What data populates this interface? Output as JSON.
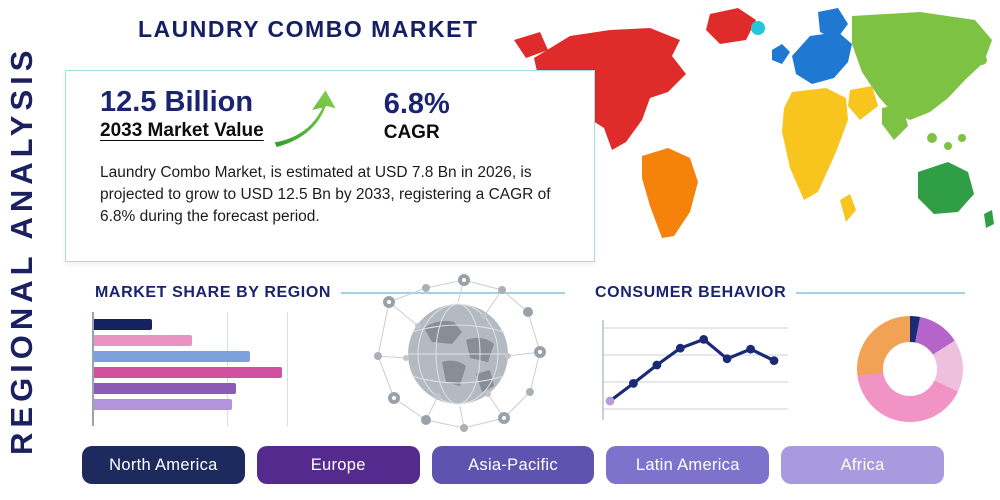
{
  "title": "LAUNDRY COMBO MARKET",
  "side_label": "REGIONAL ANALYSIS",
  "summary_card": {
    "stat1_value": "12.5 Billion",
    "stat1_label": "2033 Market Value",
    "stat2_value": "6.8%",
    "stat2_label": "CAGR",
    "description": "Laundry Combo Market, is estimated at USD 7.8 Bn in 2026, is projected to grow to USD 12.5 Bn by 2033, registering a CAGR of 6.8% during the forecast period."
  },
  "sections": {
    "market_share_heading": "MARKET SHARE BY REGION",
    "consumer_behavior_heading": "CONSUMER BEHAVIOR"
  },
  "region_buttons": [
    {
      "label": "North America",
      "color": "#1c2a5e"
    },
    {
      "label": "Europe",
      "color": "#552a8e"
    },
    {
      "label": "Asia-Pacific",
      "color": "#5e53ae"
    },
    {
      "label": "Latin America",
      "color": "#7f72cd"
    },
    {
      "label": "Africa",
      "color": "#a79ade"
    }
  ],
  "map": {
    "regions": {
      "north_america": "#e02b2b",
      "greenland": "#e02b2b",
      "south_america": "#f5820b",
      "europe": "#1f78d1",
      "africa": "#f7c51e",
      "asia": "#7dc242",
      "australia": "#2f9e44",
      "islands": "#26c6da"
    }
  },
  "colors": {
    "accent_navy": "#1a2472",
    "divider_teal": "#9fd4e4",
    "arrow_green": "#55b63c"
  },
  "chart_data": [
    {
      "type": "bar",
      "title": "MARKET SHARE BY REGION",
      "orientation": "horizontal",
      "categories": [
        "",
        "",
        "",
        "",
        "",
        ""
      ],
      "values": [
        29,
        49,
        78,
        94,
        71,
        69
      ],
      "unit": "percent-of-axis (estimated; no tick labels shown)",
      "colors": [
        "#14235f",
        "#e794c5",
        "#7da0dd",
        "#d1509f",
        "#8b5bb5",
        "#b393d9"
      ],
      "grid": true,
      "legend": false
    },
    {
      "type": "line",
      "title": "CONSUMER BEHAVIOR",
      "x": [
        1,
        2,
        3,
        4,
        5,
        6,
        7,
        8
      ],
      "values": [
        17,
        37,
        58,
        77,
        87,
        65,
        76,
        63
      ],
      "unit": "percent-of-axis (estimated; no tick labels shown)",
      "line_color": "#1b2a74",
      "first_marker_color": "#b39ddb",
      "grid": true,
      "legend": false
    },
    {
      "type": "pie",
      "style": "donut",
      "slices": [
        {
          "label": "navy-sliver",
          "value": 3,
          "color": "#1b2a74"
        },
        {
          "label": "purple",
          "value": 13,
          "color": "#b565c9"
        },
        {
          "label": "light-pink",
          "value": 16,
          "color": "#efc0dd"
        },
        {
          "label": "pink",
          "value": 41,
          "color": "#f193c4"
        },
        {
          "label": "orange",
          "value": 27,
          "color": "#f2a255"
        }
      ],
      "legend": false
    }
  ]
}
